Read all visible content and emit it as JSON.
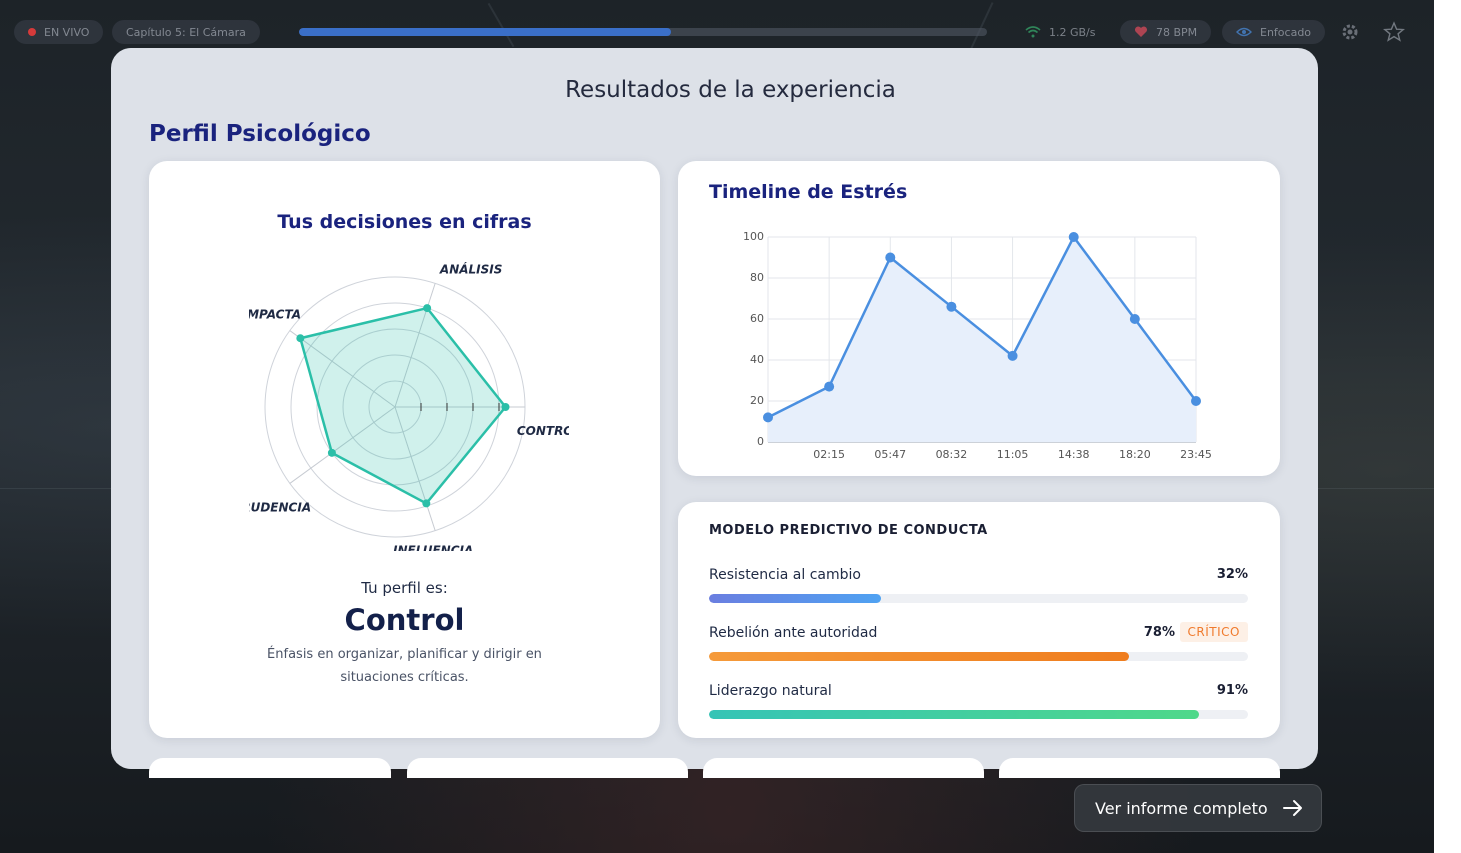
{
  "topbar": {
    "live_label": "EN VIVO",
    "chapter": "Capítulo 5: El Cámara",
    "progress": 0.54,
    "bandwidth": "1.2 GB/s",
    "heart_rate": "78 BPM",
    "focus": "Enfocado"
  },
  "modal": {
    "title": "Resultados de la experiencia",
    "section_title": "Perfil Psicológico"
  },
  "radar": {
    "title": "Tus decisiones en cifras",
    "axes": [
      "ANÁLISIS",
      "CONTROL",
      "INFLUENCIA",
      "PRUDENCIA",
      "IMPACTA"
    ],
    "values": [
      80,
      85,
      78,
      60,
      90
    ],
    "max": 100,
    "color": "#2bbfa8"
  },
  "profile": {
    "lead": "Tu perfil es:",
    "name": "Control",
    "description": "Énfasis en organizar, planificar y dirigir en situaciones críticas."
  },
  "chart_data": {
    "type": "area",
    "title": "Timeline de Estrés",
    "x": [
      "",
      "02:15",
      "05:47",
      "08:32",
      "11:05",
      "14:38",
      "18:20",
      "23:45"
    ],
    "values": [
      12,
      27,
      90,
      66,
      42,
      100,
      60,
      20
    ],
    "ylim": [
      0,
      100
    ],
    "yticks": [
      0,
      20,
      40,
      60,
      80,
      100
    ],
    "grid": true,
    "line_color": "#4a8fe0",
    "fill_color": "#e7effb"
  },
  "predictive": {
    "title": "MODELO PREDICTIVO DE CONDUCTA",
    "items": [
      {
        "label": "Resistencia al cambio",
        "value_text": "32%",
        "value": 32,
        "color_from": "#6a7ee0",
        "color_to": "#4fa2f2"
      },
      {
        "label": "Rebelión ante autoridad",
        "value_text": "78%",
        "value": 78,
        "badge": "CRÍTICO",
        "color_from": "#f59a3a",
        "color_to": "#ef7d1e"
      },
      {
        "label": "Liderazgo natural",
        "value_text": "91%",
        "value": 91,
        "color_from": "#35c4b6",
        "color_to": "#4fd88a"
      }
    ]
  },
  "cta": {
    "label": "Ver informe completo"
  }
}
